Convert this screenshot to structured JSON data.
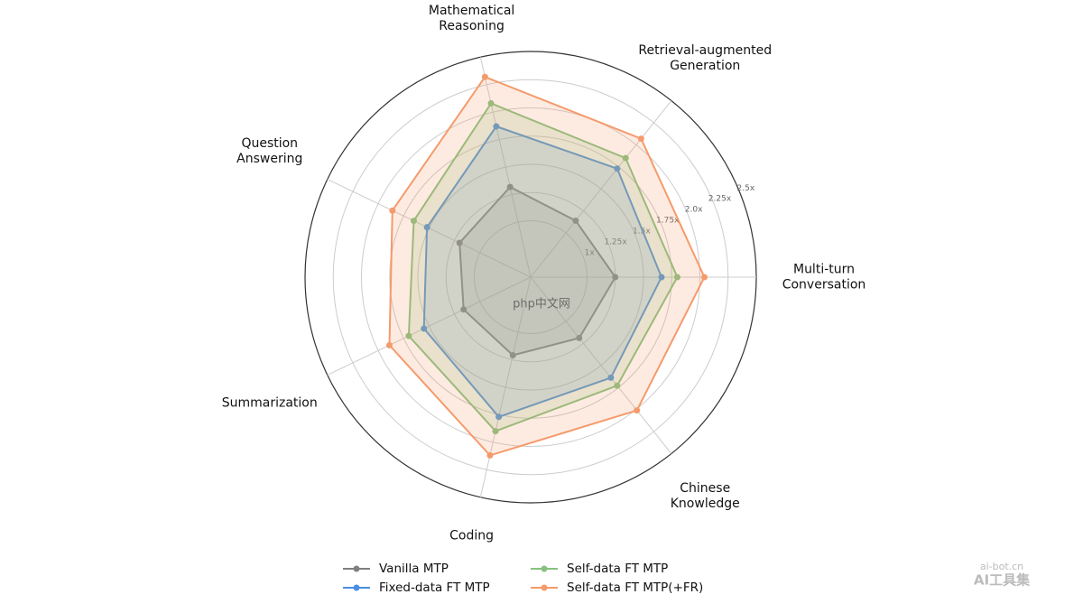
{
  "chart_data": {
    "type": "radar",
    "categories": [
      "Multi-turn\nConversation",
      "Retrieval-augmented\nGeneration",
      "Mathematical\nReasoning",
      "Question\nAnswering",
      "Summarization",
      "Coding",
      "Chinese\nKnowledge"
    ],
    "ylim": [
      0.5,
      2.5
    ],
    "yticks": [
      {
        "value": 1,
        "label": "1x"
      },
      {
        "value": 1.25,
        "label": "1.25x"
      },
      {
        "value": 1.5,
        "label": "1.5x"
      },
      {
        "value": 1.75,
        "label": "1.75x"
      },
      {
        "value": 2.0,
        "label": "2.0x"
      },
      {
        "value": 2.25,
        "label": "2.25x"
      },
      {
        "value": 2.5,
        "label": "2.5x"
      }
    ],
    "grid": true,
    "series": [
      {
        "name": "Vanilla MTP",
        "color": "#808080",
        "values": [
          1.25,
          1.14,
          1.32,
          1.2,
          1.16,
          1.21,
          1.19
        ]
      },
      {
        "name": "Fixed-data FT MTP",
        "color": "#4a8fe0",
        "values": [
          1.66,
          1.73,
          1.87,
          1.52,
          1.55,
          1.77,
          1.64
        ]
      },
      {
        "name": "Self-data FT MTP",
        "color": "#86c17f",
        "values": [
          1.8,
          1.85,
          2.08,
          1.65,
          1.7,
          1.9,
          1.73
        ]
      },
      {
        "name": "Self-data FT MTP(+FR)",
        "color": "#f59a6b",
        "values": [
          2.04,
          2.07,
          2.32,
          1.86,
          1.89,
          2.12,
          2.01
        ]
      }
    ],
    "legend": "bottom",
    "watermarks": [
      "php中文网",
      "ai-bot.cn",
      "AI工具集"
    ]
  }
}
